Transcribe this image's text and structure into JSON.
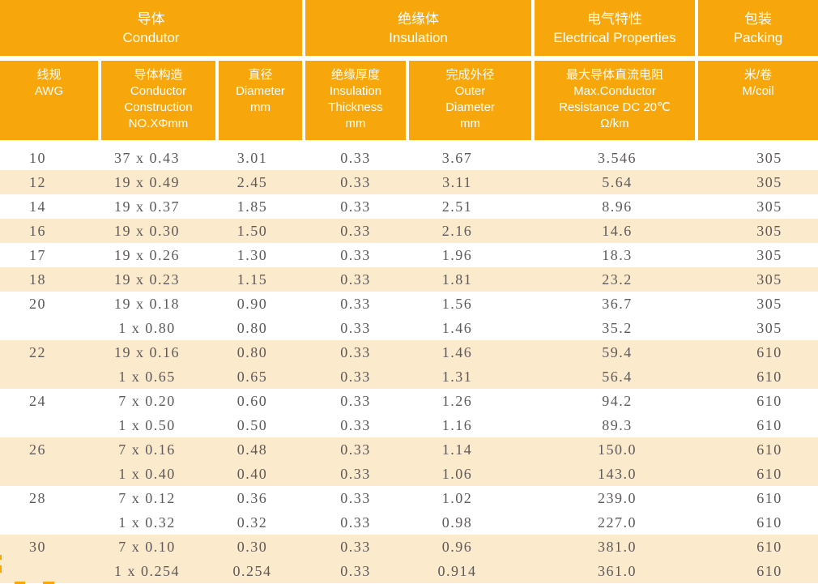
{
  "colors": {
    "accent_orange": "#F7A70B",
    "row_shade": "#FCEACC",
    "header_text": "#FFFFFF",
    "data_text": "#5D595A"
  },
  "table": {
    "top_headers": [
      {
        "zh": "导体",
        "en": "Condutor"
      },
      {
        "zh": "绝缘体",
        "en": "Insulation"
      },
      {
        "zh": "电气特性",
        "en": "Electrical Properties"
      },
      {
        "zh": "包装",
        "en": "Packing"
      }
    ],
    "sub_headers": [
      {
        "lines": [
          "线规",
          "AWG"
        ]
      },
      {
        "lines": [
          "导体构造",
          "Conductor",
          "Construction",
          "NO.XΦmm"
        ]
      },
      {
        "lines": [
          "直径",
          "Diameter",
          "mm"
        ]
      },
      {
        "lines": [
          "绝缘厚度",
          "Insulation",
          "Thickness",
          "mm"
        ]
      },
      {
        "lines": [
          "完成外径",
          "Outer",
          "Diameter",
          "mm"
        ]
      },
      {
        "lines": [
          "最大导体直流电阻",
          "Max.Conductor",
          "Resistance DC 20℃",
          "Ω/km"
        ]
      },
      {
        "lines": [
          "米/卷",
          "M/coil"
        ]
      }
    ],
    "rows": [
      {
        "awg": "10",
        "construction": "37 x 0.43",
        "diameter": "3.01",
        "insulation": "0.33",
        "outer": "3.67",
        "resistance": "3.546",
        "coil": "305",
        "shaded": false
      },
      {
        "awg": "12",
        "construction": "19 x 0.49",
        "diameter": "2.45",
        "insulation": "0.33",
        "outer": "3.11",
        "resistance": "5.64",
        "coil": "305",
        "shaded": true
      },
      {
        "awg": "14",
        "construction": "19 x 0.37",
        "diameter": "1.85",
        "insulation": "0.33",
        "outer": "2.51",
        "resistance": "8.96",
        "coil": "305",
        "shaded": false
      },
      {
        "awg": "16",
        "construction": "19 x 0.30",
        "diameter": "1.50",
        "insulation": "0.33",
        "outer": "2.16",
        "resistance": "14.6",
        "coil": "305",
        "shaded": true
      },
      {
        "awg": "17",
        "construction": "19 x 0.26",
        "diameter": "1.30",
        "insulation": "0.33",
        "outer": "1.96",
        "resistance": "18.3",
        "coil": "305",
        "shaded": false
      },
      {
        "awg": "18",
        "construction": "19 x 0.23",
        "diameter": "1.15",
        "insulation": "0.33",
        "outer": "1.81",
        "resistance": "23.2",
        "coil": "305",
        "shaded": true
      },
      {
        "awg": "20",
        "construction": "19 x 0.18",
        "diameter": "0.90",
        "insulation": "0.33",
        "outer": "1.56",
        "resistance": "36.7",
        "coil": "305",
        "shaded": false
      },
      {
        "awg": "",
        "construction": "1 x 0.80",
        "diameter": "0.80",
        "insulation": "0.33",
        "outer": "1.46",
        "resistance": "35.2",
        "coil": "305",
        "shaded": false
      },
      {
        "awg": "22",
        "construction": "19 x 0.16",
        "diameter": "0.80",
        "insulation": "0.33",
        "outer": "1.46",
        "resistance": "59.4",
        "coil": "610",
        "shaded": true
      },
      {
        "awg": "",
        "construction": "1 x 0.65",
        "diameter": "0.65",
        "insulation": "0.33",
        "outer": "1.31",
        "resistance": "56.4",
        "coil": "610",
        "shaded": true
      },
      {
        "awg": "24",
        "construction": "7 x 0.20",
        "diameter": "0.60",
        "insulation": "0.33",
        "outer": "1.26",
        "resistance": "94.2",
        "coil": "610",
        "shaded": false
      },
      {
        "awg": "",
        "construction": "1 x 0.50",
        "diameter": "0.50",
        "insulation": "0.33",
        "outer": "1.16",
        "resistance": "89.3",
        "coil": "610",
        "shaded": false
      },
      {
        "awg": "26",
        "construction": "7 x 0.16",
        "diameter": "0.48",
        "insulation": "0.33",
        "outer": "1.14",
        "resistance": "150.0",
        "coil": "610",
        "shaded": true
      },
      {
        "awg": "",
        "construction": "1 x 0.40",
        "diameter": "0.40",
        "insulation": "0.33",
        "outer": "1.06",
        "resistance": "143.0",
        "coil": "610",
        "shaded": true
      },
      {
        "awg": "28",
        "construction": "7 x 0.12",
        "diameter": "0.36",
        "insulation": "0.33",
        "outer": "1.02",
        "resistance": "239.0",
        "coil": "610",
        "shaded": false
      },
      {
        "awg": "",
        "construction": "1 x 0.32",
        "diameter": "0.32",
        "insulation": "0.33",
        "outer": "0.98",
        "resistance": "227.0",
        "coil": "610",
        "shaded": false
      },
      {
        "awg": "30",
        "construction": "7 x 0.10",
        "diameter": "0.30",
        "insulation": "0.33",
        "outer": "0.96",
        "resistance": "381.0",
        "coil": "610",
        "shaded": true
      },
      {
        "awg": "",
        "construction": "1 x 0.254",
        "diameter": "0.254",
        "insulation": "0.33",
        "outer": "0.914",
        "resistance": "361.0",
        "coil": "610",
        "shaded": true
      }
    ]
  }
}
